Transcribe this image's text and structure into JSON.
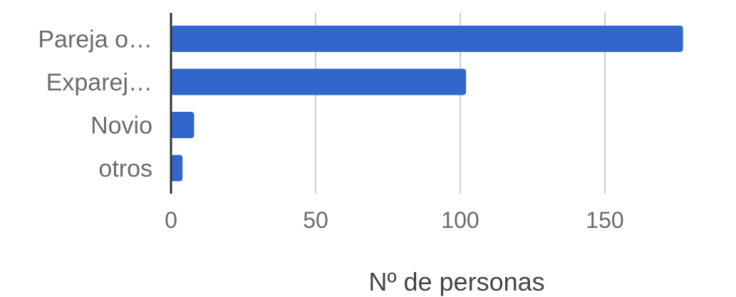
{
  "chart_data": {
    "type": "bar",
    "orientation": "horizontal",
    "categories": [
      "Pareja o…",
      "Exparej…",
      "Novio",
      "otros"
    ],
    "values": [
      177,
      102,
      8,
      4
    ],
    "xlabel": "Nº de personas",
    "ylabel": "",
    "xlim": [
      0,
      190
    ],
    "x_ticks": [
      0,
      50,
      100,
      150
    ],
    "x_tick_labels": [
      "0",
      "50",
      "100",
      "150"
    ],
    "grid": true,
    "bar_color": "#3366CC",
    "grid_color": "#CCCCCC",
    "axis_color": "#333333"
  }
}
